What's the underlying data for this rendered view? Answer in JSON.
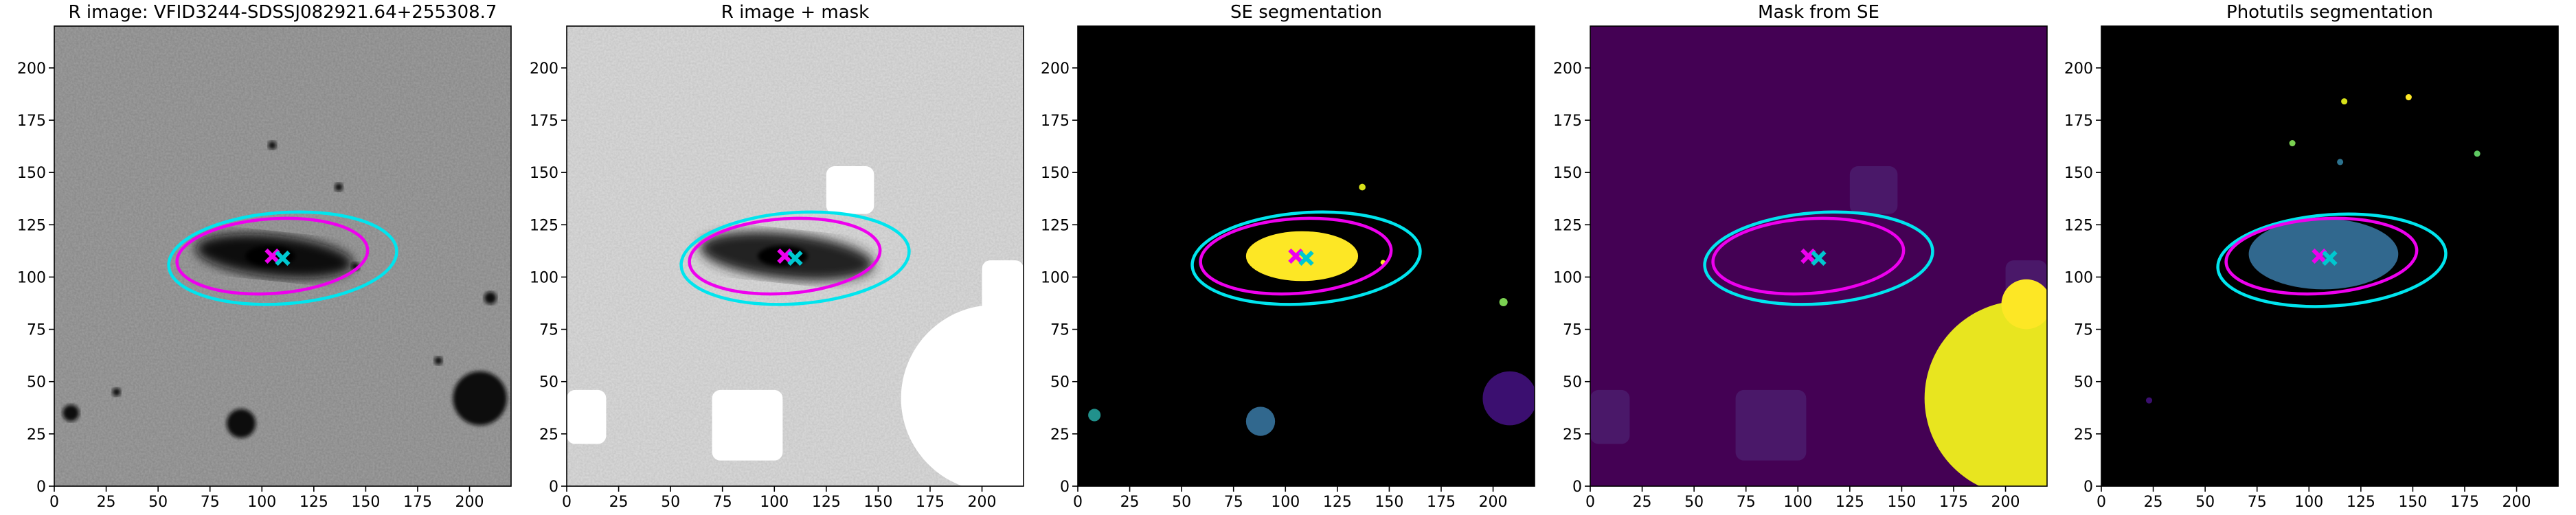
{
  "chart_data": [
    {
      "type": "image",
      "title": "R image: VFID3244-SDSSJ082921.64+255308.7",
      "xlim": [
        0,
        220
      ],
      "ylim": [
        0,
        220
      ],
      "xticks": [
        0,
        25,
        50,
        75,
        100,
        125,
        150,
        175,
        200
      ],
      "yticks": [
        0,
        25,
        50,
        75,
        100,
        125,
        150,
        175,
        200
      ],
      "ellipses": [
        {
          "color": "#00e5ee",
          "cx": 110,
          "cy": 109,
          "rx": 55,
          "ry": 22,
          "angle": -4
        },
        {
          "color": "#ee00ee",
          "cx": 105,
          "cy": 110,
          "rx": 46,
          "ry": 18,
          "angle": -4
        }
      ],
      "markers": [
        {
          "color": "#ee00ee",
          "x": 105,
          "y": 110
        },
        {
          "color": "#00c8d0",
          "x": 110,
          "y": 109
        }
      ]
    },
    {
      "type": "image",
      "title": "R image + mask",
      "xlim": [
        0,
        220
      ],
      "ylim": [
        0,
        220
      ],
      "xticks": [
        0,
        25,
        50,
        75,
        100,
        125,
        150,
        175,
        200
      ],
      "yticks": [
        0,
        25,
        50,
        75,
        100,
        125,
        150,
        175,
        200
      ],
      "ellipses": [
        {
          "color": "#00e5ee",
          "cx": 110,
          "cy": 109,
          "rx": 55,
          "ry": 22,
          "angle": -4
        },
        {
          "color": "#ee00ee",
          "cx": 105,
          "cy": 110,
          "rx": 46,
          "ry": 18,
          "angle": -4
        }
      ],
      "markers": [
        {
          "color": "#ee00ee",
          "x": 105,
          "y": 110
        },
        {
          "color": "#00c8d0",
          "x": 110,
          "y": 109
        }
      ]
    },
    {
      "type": "image",
      "title": "SE segmentation",
      "xlim": [
        0,
        220
      ],
      "ylim": [
        0,
        220
      ],
      "xticks": [
        0,
        25,
        50,
        75,
        100,
        125,
        150,
        175,
        200
      ],
      "yticks": [
        0,
        25,
        50,
        75,
        100,
        125,
        150,
        175,
        200
      ],
      "ellipses": [
        {
          "color": "#00e5ee",
          "cx": 110,
          "cy": 109,
          "rx": 55,
          "ry": 22,
          "angle": -4
        },
        {
          "color": "#ee00ee",
          "cx": 105,
          "cy": 110,
          "rx": 46,
          "ry": 18,
          "angle": -4
        }
      ],
      "markers": [
        {
          "color": "#ee00ee",
          "x": 105,
          "y": 110
        },
        {
          "color": "#00c8d0",
          "x": 110,
          "y": 109
        }
      ]
    },
    {
      "type": "image",
      "title": "Mask from SE",
      "xlim": [
        0,
        220
      ],
      "ylim": [
        0,
        220
      ],
      "xticks": [
        0,
        25,
        50,
        75,
        100,
        125,
        150,
        175,
        200
      ],
      "yticks": [
        0,
        25,
        50,
        75,
        100,
        125,
        150,
        175,
        200
      ],
      "ellipses": [
        {
          "color": "#00e5ee",
          "cx": 110,
          "cy": 109,
          "rx": 55,
          "ry": 22,
          "angle": -4
        },
        {
          "color": "#ee00ee",
          "cx": 105,
          "cy": 110,
          "rx": 46,
          "ry": 18,
          "angle": -4
        }
      ],
      "markers": [
        {
          "color": "#ee00ee",
          "x": 105,
          "y": 110
        },
        {
          "color": "#00c8d0",
          "x": 110,
          "y": 109
        }
      ]
    },
    {
      "type": "image",
      "title": "Photutils segmentation",
      "xlim": [
        0,
        220
      ],
      "ylim": [
        0,
        220
      ],
      "xticks": [
        0,
        25,
        50,
        75,
        100,
        125,
        150,
        175,
        200
      ],
      "yticks": [
        0,
        25,
        50,
        75,
        100,
        125,
        150,
        175,
        200
      ],
      "ellipses": [
        {
          "color": "#00e5ee",
          "cx": 111,
          "cy": 108,
          "rx": 55,
          "ry": 22,
          "angle": -4
        },
        {
          "color": "#ee00ee",
          "cx": 106,
          "cy": 110,
          "rx": 46,
          "ry": 18,
          "angle": -4
        }
      ],
      "markers": [
        {
          "color": "#ee00ee",
          "x": 105,
          "y": 110
        },
        {
          "color": "#00c8d0",
          "x": 110,
          "y": 109
        }
      ]
    }
  ]
}
